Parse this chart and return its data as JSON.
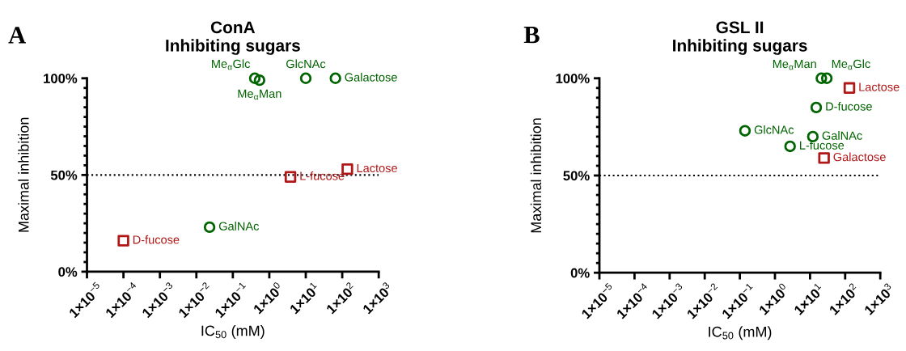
{
  "chart_data": [
    {
      "type": "scatter",
      "title": "ConA\nInhibiting sugars",
      "xlabel": "IC$_{50}$ (mM)",
      "ylabel": "Maximal inhibition",
      "log": "x",
      "xlim": [
        1e-05,
        1000
      ],
      "xticks": [
        {
          "value": 1e-05,
          "label": "1×10$^{−5}$"
        },
        {
          "value": 0.0001,
          "label": "1×10$^{−4}$"
        },
        {
          "value": 0.001,
          "label": "1×10$^{−3}$"
        },
        {
          "value": 0.01,
          "label": "1×10$^{−2}$"
        },
        {
          "value": 0.1,
          "label": "1×10$^{−1}$"
        },
        {
          "value": 1,
          "label": "1×10$^{0}$"
        },
        {
          "value": 10,
          "label": "1×10$^{1}$"
        },
        {
          "value": 100,
          "label": "1×10$^{2}$"
        },
        {
          "value": 1000,
          "label": "1×10$^{3}$"
        }
      ],
      "ylim": [
        0,
        100
      ],
      "yticks": [
        {
          "value": 0,
          "label": "0%"
        },
        {
          "value": 5,
          "label": null
        },
        {
          "value": 10,
          "label": null
        },
        {
          "value": 15,
          "label": null
        },
        {
          "value": 20,
          "label": null
        },
        {
          "value": 25,
          "label": null
        },
        {
          "value": 30,
          "label": null
        },
        {
          "value": 35,
          "label": null
        },
        {
          "value": 40,
          "label": null
        },
        {
          "value": 45,
          "label": null
        },
        {
          "value": 50,
          "label": "50%"
        },
        {
          "value": 55,
          "label": null
        },
        {
          "value": 60,
          "label": null
        },
        {
          "value": 65,
          "label": null
        },
        {
          "value": 70,
          "label": null
        },
        {
          "value": 75,
          "label": null
        },
        {
          "value": 80,
          "label": null
        },
        {
          "value": 85,
          "label": null
        },
        {
          "value": 90,
          "label": null
        },
        {
          "value": 95,
          "label": null
        },
        {
          "value": 100,
          "label": "100%"
        }
      ],
      "grid": false,
      "legend": false,
      "series": [
        {
          "color": "#006400",
          "marker": "circle",
          "x": [
            0.4,
            0.54,
            10,
            65,
            0.023
          ],
          "values": [
            100,
            99,
            100,
            100,
            23
          ]
        },
        {
          "color": "#b01818",
          "marker": "square",
          "x": [
            3.8,
            138,
            0.0001
          ],
          "values": [
            49,
            53,
            16
          ]
        }
      ],
      "ref_lines": [
        {
          "axis": "y",
          "value": 50,
          "color": "#000000",
          "line_style": "dotted"
        }
      ],
      "annotations": [
        "A",
        {
          "text": "Me$_{α}$Glc",
          "x": 0.4,
          "y": 100
        },
        {
          "text": "Me$_{α}$Man",
          "x": 0.54,
          "y": 99
        },
        {
          "text": "GlcNAc",
          "x": 10,
          "y": 100
        },
        {
          "text": "Galactose",
          "x": 65,
          "y": 100
        },
        {
          "text": "GalNAc",
          "x": 0.023,
          "y": 23
        },
        {
          "text": "L-fucose",
          "x": 3.8,
          "y": 49
        },
        {
          "text": "Lactose",
          "x": 138,
          "y": 53
        },
        {
          "text": "D-fucose",
          "x": 0.0001,
          "y": 16
        }
      ]
    },
    {
      "type": "scatter",
      "title": "GSL II\nInhibiting sugars",
      "xlabel": "IC$_{50}$ (mM)",
      "ylabel": "Maximal inhibition",
      "log": "x",
      "xlim": [
        1e-05,
        1000
      ],
      "xticks": [
        {
          "value": 1e-05,
          "label": "1×10$^{−5}$"
        },
        {
          "value": 0.0001,
          "label": "1×10$^{−4}$"
        },
        {
          "value": 0.001,
          "label": "1×10$^{−3}$"
        },
        {
          "value": 0.01,
          "label": "1×10$^{−2}$"
        },
        {
          "value": 0.1,
          "label": "1×10$^{−1}$"
        },
        {
          "value": 1,
          "label": "1×10$^{0}$"
        },
        {
          "value": 10,
          "label": "1×10$^{1}$"
        },
        {
          "value": 100,
          "label": "1×10$^{2}$"
        },
        {
          "value": 1000,
          "label": "1×10$^{3}$"
        }
      ],
      "ylim": [
        0,
        100
      ],
      "yticks": [
        {
          "value": 0,
          "label": "0%"
        },
        {
          "value": 5,
          "label": null
        },
        {
          "value": 10,
          "label": null
        },
        {
          "value": 15,
          "label": null
        },
        {
          "value": 20,
          "label": null
        },
        {
          "value": 25,
          "label": null
        },
        {
          "value": 30,
          "label": null
        },
        {
          "value": 35,
          "label": null
        },
        {
          "value": 40,
          "label": null
        },
        {
          "value": 45,
          "label": null
        },
        {
          "value": 50,
          "label": "50%"
        },
        {
          "value": 55,
          "label": null
        },
        {
          "value": 60,
          "label": null
        },
        {
          "value": 65,
          "label": null
        },
        {
          "value": 70,
          "label": null
        },
        {
          "value": 75,
          "label": null
        },
        {
          "value": 80,
          "label": null
        },
        {
          "value": 85,
          "label": null
        },
        {
          "value": 90,
          "label": null
        },
        {
          "value": 95,
          "label": null
        },
        {
          "value": 100,
          "label": "100%"
        }
      ],
      "grid": false,
      "legend": false,
      "series": [
        {
          "color": "#006400",
          "marker": "circle",
          "x": [
            21,
            30,
            15,
            0.14,
            12,
            2.7
          ],
          "values": [
            100,
            100,
            85,
            73,
            70,
            65
          ]
        },
        {
          "color": "#b01818",
          "marker": "square",
          "x": [
            132,
            25
          ],
          "values": [
            95,
            59
          ]
        }
      ],
      "ref_lines": [
        {
          "axis": "y",
          "value": 50,
          "color": "#000000",
          "line_style": "dotted"
        }
      ],
      "annotations": [
        "B",
        {
          "text": "Me$_{α}$Man",
          "x": 21,
          "y": 100
        },
        {
          "text": "Me$_{α}$Glc",
          "x": 30,
          "y": 100
        },
        {
          "text": "D-fucose",
          "x": 15,
          "y": 85
        },
        {
          "text": "GlcNAc",
          "x": 0.14,
          "y": 73
        },
        {
          "text": "GalNAc",
          "x": 12,
          "y": 70
        },
        {
          "text": "L-fucose",
          "x": 2.7,
          "y": 65
        },
        {
          "text": "Lactose",
          "x": 132,
          "y": 95
        },
        {
          "text": "Galactose",
          "x": 25,
          "y": 59
        }
      ]
    }
  ]
}
